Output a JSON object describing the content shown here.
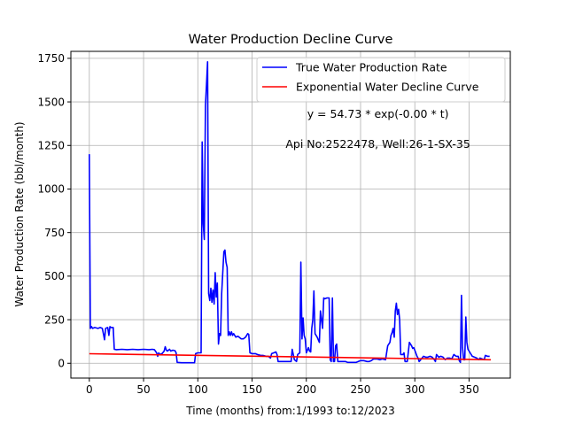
{
  "chart_data": {
    "type": "line",
    "title": "Water Production Decline Curve",
    "xlabel": "Time (months) from:1/1993 to:12/2023",
    "ylabel": "Water Production Rate (bbl/month)",
    "xlim": [
      -17,
      388
    ],
    "ylim": [
      -85,
      1790
    ],
    "xticks": [
      0,
      50,
      100,
      150,
      200,
      250,
      300,
      350
    ],
    "yticks": [
      0,
      250,
      500,
      750,
      1000,
      1250,
      1500,
      1750
    ],
    "grid": true,
    "legend_position": "top-right",
    "annotations": [
      {
        "text": "y = 54.73 * exp(-0.00 * t)",
        "x": 266,
        "y": 1410
      },
      {
        "text": "Api No:2522478, Well:26-1-SX-35",
        "x": 266,
        "y": 1235
      }
    ],
    "series": [
      {
        "name": "True Water Production Rate",
        "color": "#0000ff",
        "points": [
          [
            0,
            1200
          ],
          [
            1,
            200
          ],
          [
            2,
            210
          ],
          [
            3,
            200
          ],
          [
            5,
            205
          ],
          [
            8,
            200
          ],
          [
            10,
            205
          ],
          [
            12,
            200
          ],
          [
            13,
            170
          ],
          [
            14,
            135
          ],
          [
            15,
            200
          ],
          [
            17,
            205
          ],
          [
            18,
            160
          ],
          [
            19,
            210
          ],
          [
            20,
            205
          ],
          [
            22,
            205
          ],
          [
            23,
            80
          ],
          [
            25,
            78
          ],
          [
            30,
            80
          ],
          [
            35,
            78
          ],
          [
            40,
            80
          ],
          [
            45,
            78
          ],
          [
            50,
            80
          ],
          [
            55,
            78
          ],
          [
            58,
            80
          ],
          [
            60,
            78
          ],
          [
            62,
            60
          ],
          [
            63,
            40
          ],
          [
            64,
            60
          ],
          [
            65,
            50
          ],
          [
            67,
            55
          ],
          [
            69,
            70
          ],
          [
            70,
            95
          ],
          [
            71,
            75
          ],
          [
            72,
            70
          ],
          [
            74,
            80
          ],
          [
            75,
            70
          ],
          [
            77,
            75
          ],
          [
            79,
            72
          ],
          [
            80,
            60
          ],
          [
            81,
            5
          ],
          [
            85,
            3
          ],
          [
            90,
            3
          ],
          [
            95,
            3
          ],
          [
            97,
            3
          ],
          [
            98,
            55
          ],
          [
            100,
            60
          ],
          [
            103,
            60
          ],
          [
            104,
            1270
          ],
          [
            105,
            800
          ],
          [
            106,
            710
          ],
          [
            107,
            1480
          ],
          [
            108,
            1600
          ],
          [
            109,
            1730
          ],
          [
            110,
            400
          ],
          [
            111,
            360
          ],
          [
            112,
            430
          ],
          [
            113,
            350
          ],
          [
            114,
            420
          ],
          [
            115,
            340
          ],
          [
            116,
            520
          ],
          [
            117,
            380
          ],
          [
            118,
            460
          ],
          [
            119,
            110
          ],
          [
            120,
            170
          ],
          [
            121,
            160
          ],
          [
            122,
            400
          ],
          [
            124,
            640
          ],
          [
            125,
            650
          ],
          [
            126,
            580
          ],
          [
            127,
            550
          ],
          [
            128,
            160
          ],
          [
            129,
            180
          ],
          [
            130,
            160
          ],
          [
            131,
            180
          ],
          [
            132,
            160
          ],
          [
            133,
            170
          ],
          [
            135,
            150
          ],
          [
            137,
            155
          ],
          [
            140,
            140
          ],
          [
            142,
            140
          ],
          [
            144,
            150
          ],
          [
            146,
            170
          ],
          [
            147,
            165
          ],
          [
            148,
            60
          ],
          [
            150,
            55
          ],
          [
            153,
            55
          ],
          [
            155,
            50
          ],
          [
            158,
            45
          ],
          [
            160,
            45
          ],
          [
            163,
            40
          ],
          [
            165,
            40
          ],
          [
            167,
            30
          ],
          [
            168,
            55
          ],
          [
            170,
            60
          ],
          [
            172,
            65
          ],
          [
            173,
            50
          ],
          [
            174,
            10
          ],
          [
            178,
            10
          ],
          [
            182,
            10
          ],
          [
            186,
            10
          ],
          [
            187,
            80
          ],
          [
            189,
            20
          ],
          [
            191,
            10
          ],
          [
            192,
            50
          ],
          [
            194,
            60
          ],
          [
            195,
            580
          ],
          [
            196,
            140
          ],
          [
            197,
            260
          ],
          [
            198,
            160
          ],
          [
            199,
            140
          ],
          [
            200,
            60
          ],
          [
            202,
            90
          ],
          [
            203,
            70
          ],
          [
            204,
            65
          ],
          [
            205,
            200
          ],
          [
            206,
            250
          ],
          [
            207,
            415
          ],
          [
            208,
            170
          ],
          [
            210,
            150
          ],
          [
            212,
            120
          ],
          [
            213,
            300
          ],
          [
            215,
            200
          ],
          [
            216,
            375
          ],
          [
            217,
            370
          ],
          [
            219,
            375
          ],
          [
            221,
            375
          ],
          [
            222,
            20
          ],
          [
            223,
            10
          ],
          [
            224,
            375
          ],
          [
            225,
            10
          ],
          [
            226,
            10
          ],
          [
            227,
            100
          ],
          [
            228,
            110
          ],
          [
            229,
            10
          ],
          [
            231,
            10
          ],
          [
            233,
            10
          ],
          [
            236,
            10
          ],
          [
            238,
            5
          ],
          [
            240,
            5
          ],
          [
            243,
            5
          ],
          [
            246,
            5
          ],
          [
            248,
            10
          ],
          [
            250,
            15
          ],
          [
            253,
            15
          ],
          [
            256,
            10
          ],
          [
            258,
            10
          ],
          [
            260,
            15
          ],
          [
            262,
            25
          ],
          [
            265,
            25
          ],
          [
            268,
            20
          ],
          [
            270,
            25
          ],
          [
            273,
            20
          ],
          [
            275,
            100
          ],
          [
            277,
            120
          ],
          [
            278,
            160
          ],
          [
            279,
            175
          ],
          [
            280,
            200
          ],
          [
            281,
            150
          ],
          [
            282,
            300
          ],
          [
            283,
            345
          ],
          [
            284,
            280
          ],
          [
            285,
            310
          ],
          [
            286,
            250
          ],
          [
            287,
            50
          ],
          [
            289,
            50
          ],
          [
            290,
            60
          ],
          [
            291,
            10
          ],
          [
            293,
            10
          ],
          [
            295,
            120
          ],
          [
            296,
            110
          ],
          [
            297,
            100
          ],
          [
            298,
            85
          ],
          [
            299,
            90
          ],
          [
            300,
            75
          ],
          [
            302,
            40
          ],
          [
            303,
            30
          ],
          [
            304,
            10
          ],
          [
            306,
            25
          ],
          [
            308,
            40
          ],
          [
            310,
            35
          ],
          [
            312,
            35
          ],
          [
            314,
            40
          ],
          [
            316,
            35
          ],
          [
            318,
            20
          ],
          [
            319,
            10
          ],
          [
            320,
            50
          ],
          [
            322,
            35
          ],
          [
            324,
            40
          ],
          [
            326,
            35
          ],
          [
            328,
            20
          ],
          [
            330,
            30
          ],
          [
            332,
            30
          ],
          [
            334,
            25
          ],
          [
            336,
            50
          ],
          [
            338,
            40
          ],
          [
            340,
            40
          ],
          [
            341,
            15
          ],
          [
            342,
            5
          ],
          [
            343,
            390
          ],
          [
            344,
            90
          ],
          [
            345,
            20
          ],
          [
            346,
            20
          ],
          [
            347,
            265
          ],
          [
            348,
            120
          ],
          [
            349,
            80
          ],
          [
            351,
            60
          ],
          [
            353,
            40
          ],
          [
            355,
            35
          ],
          [
            357,
            30
          ],
          [
            359,
            20
          ],
          [
            360,
            30
          ],
          [
            362,
            25
          ],
          [
            364,
            20
          ],
          [
            365,
            45
          ],
          [
            367,
            40
          ],
          [
            369,
            40
          ]
        ]
      },
      {
        "name": "Exponential Water Decline Curve",
        "color": "#ff0000",
        "points": [
          [
            0,
            54.73
          ],
          [
            370,
            20
          ]
        ]
      }
    ]
  }
}
